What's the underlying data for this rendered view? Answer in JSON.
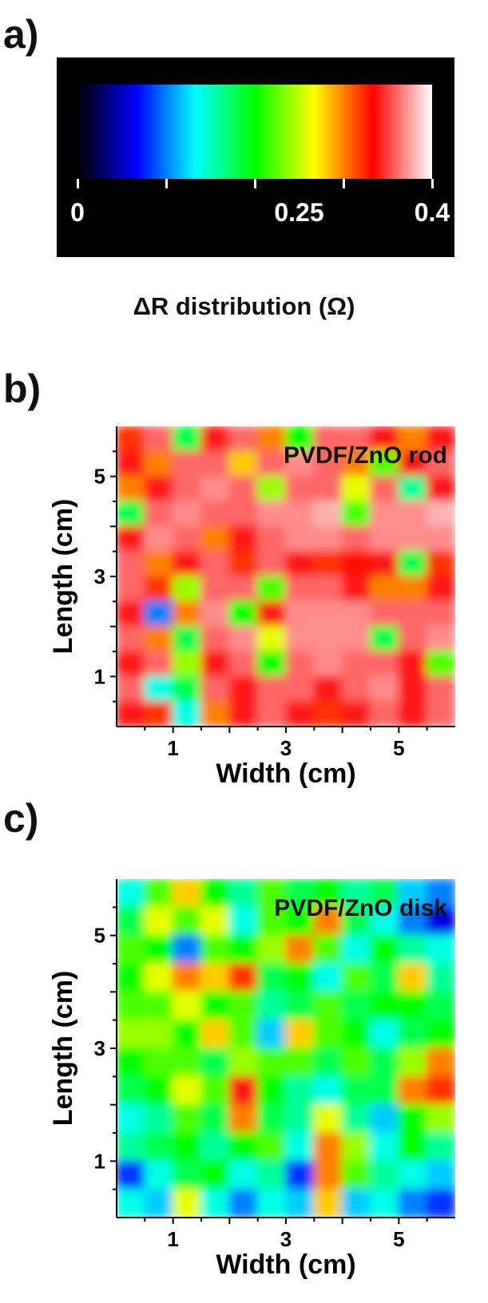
{
  "panels": {
    "a": "a)",
    "b": "b)",
    "c": "c)"
  },
  "colorbar": {
    "title": "ΔR distribution (Ω)",
    "range": [
      0,
      0.4
    ],
    "tick_labels": [
      {
        "value": 0,
        "label": "0"
      },
      {
        "value": 0.25,
        "label": "0.25"
      },
      {
        "value": 0.4,
        "label": "0.4"
      }
    ],
    "minor_ticks": [
      0,
      0.1,
      0.2,
      0.3,
      0.4
    ],
    "colors": [
      "#000000",
      "#0000ff",
      "#00ffff",
      "#00ff00",
      "#ffff00",
      "#ff0000",
      "#ffffff"
    ]
  },
  "chart_data": [
    {
      "type": "heatmap",
      "title": "PVDF/ZnO rod",
      "xlabel": "Width (cm)",
      "ylabel": "Length (cm)",
      "xlim": [
        0,
        6
      ],
      "ylim": [
        0,
        6
      ],
      "xticks": [
        1,
        3,
        5
      ],
      "yticks": [
        1,
        3,
        5
      ],
      "value_range": [
        0,
        0.4
      ],
      "x": [
        0.25,
        0.75,
        1.25,
        1.75,
        2.25,
        2.75,
        3.25,
        3.75,
        4.25,
        4.75,
        5.25,
        5.75
      ],
      "y": [
        5.75,
        5.25,
        4.75,
        4.25,
        3.75,
        3.25,
        2.75,
        2.25,
        1.75,
        1.25,
        0.75,
        0.25
      ],
      "z": [
        [
          0.32,
          0.36,
          0.18,
          0.34,
          0.36,
          0.3,
          0.2,
          0.36,
          0.36,
          0.34,
          0.3,
          0.34
        ],
        [
          0.34,
          0.3,
          0.36,
          0.36,
          0.28,
          0.36,
          0.37,
          0.36,
          0.3,
          0.22,
          0.34,
          0.36
        ],
        [
          0.3,
          0.34,
          0.36,
          0.37,
          0.36,
          0.24,
          0.36,
          0.36,
          0.26,
          0.36,
          0.16,
          0.34
        ],
        [
          0.18,
          0.36,
          0.37,
          0.36,
          0.36,
          0.37,
          0.37,
          0.38,
          0.22,
          0.37,
          0.37,
          0.38
        ],
        [
          0.34,
          0.37,
          0.36,
          0.3,
          0.34,
          0.36,
          0.37,
          0.37,
          0.36,
          0.37,
          0.37,
          0.37
        ],
        [
          0.36,
          0.3,
          0.34,
          0.36,
          0.32,
          0.36,
          0.34,
          0.32,
          0.33,
          0.34,
          0.18,
          0.32
        ],
        [
          0.36,
          0.32,
          0.24,
          0.36,
          0.36,
          0.22,
          0.36,
          0.36,
          0.34,
          0.3,
          0.3,
          0.34
        ],
        [
          0.34,
          0.1,
          0.3,
          0.37,
          0.2,
          0.34,
          0.37,
          0.37,
          0.37,
          0.36,
          0.36,
          0.36
        ],
        [
          0.36,
          0.3,
          0.18,
          0.36,
          0.37,
          0.26,
          0.37,
          0.37,
          0.37,
          0.18,
          0.36,
          0.37
        ],
        [
          0.34,
          0.36,
          0.24,
          0.34,
          0.36,
          0.2,
          0.36,
          0.37,
          0.36,
          0.36,
          0.34,
          0.22
        ],
        [
          0.36,
          0.14,
          0.18,
          0.36,
          0.34,
          0.36,
          0.36,
          0.34,
          0.36,
          0.37,
          0.34,
          0.36
        ],
        [
          0.34,
          0.32,
          0.14,
          0.3,
          0.34,
          0.36,
          0.34,
          0.32,
          0.34,
          0.36,
          0.34,
          0.36
        ]
      ]
    },
    {
      "type": "heatmap",
      "title": "PVDF/ZnO disk",
      "xlabel": "Width (cm)",
      "ylabel": "Length (cm)",
      "xlim": [
        0,
        6
      ],
      "ylim": [
        0,
        6
      ],
      "xticks": [
        1,
        3,
        5
      ],
      "yticks": [
        1,
        3,
        5
      ],
      "value_range": [
        0,
        0.4
      ],
      "x": [
        0.25,
        0.75,
        1.25,
        1.75,
        2.25,
        2.75,
        3.25,
        3.75,
        4.25,
        4.75,
        5.25,
        5.75
      ],
      "y": [
        5.75,
        5.25,
        4.75,
        4.25,
        3.75,
        3.25,
        2.75,
        2.25,
        1.75,
        1.25,
        0.75,
        0.25
      ],
      "z": [
        [
          0.14,
          0.22,
          0.28,
          0.2,
          0.16,
          0.22,
          0.18,
          0.2,
          0.16,
          0.18,
          0.12,
          0.1
        ],
        [
          0.18,
          0.26,
          0.22,
          0.26,
          0.14,
          0.22,
          0.2,
          0.3,
          0.18,
          0.14,
          0.1,
          0.06
        ],
        [
          0.22,
          0.2,
          0.1,
          0.22,
          0.2,
          0.24,
          0.3,
          0.22,
          0.14,
          0.2,
          0.16,
          0.14
        ],
        [
          0.2,
          0.26,
          0.3,
          0.28,
          0.32,
          0.18,
          0.2,
          0.14,
          0.22,
          0.18,
          0.28,
          0.16
        ],
        [
          0.22,
          0.22,
          0.26,
          0.2,
          0.22,
          0.16,
          0.18,
          0.22,
          0.18,
          0.2,
          0.2,
          0.18
        ],
        [
          0.24,
          0.24,
          0.2,
          0.28,
          0.22,
          0.12,
          0.28,
          0.22,
          0.2,
          0.14,
          0.18,
          0.2
        ],
        [
          0.2,
          0.22,
          0.22,
          0.18,
          0.24,
          0.22,
          0.22,
          0.18,
          0.22,
          0.18,
          0.24,
          0.3
        ],
        [
          0.18,
          0.2,
          0.26,
          0.22,
          0.34,
          0.2,
          0.16,
          0.14,
          0.18,
          0.18,
          0.3,
          0.32
        ],
        [
          0.14,
          0.16,
          0.22,
          0.18,
          0.3,
          0.18,
          0.16,
          0.26,
          0.16,
          0.12,
          0.2,
          0.24
        ],
        [
          0.16,
          0.18,
          0.2,
          0.16,
          0.2,
          0.22,
          0.14,
          0.3,
          0.24,
          0.14,
          0.2,
          0.16
        ],
        [
          0.08,
          0.14,
          0.18,
          0.2,
          0.14,
          0.16,
          0.08,
          0.3,
          0.22,
          0.16,
          0.14,
          0.12
        ],
        [
          0.14,
          0.12,
          0.26,
          0.14,
          0.1,
          0.14,
          0.12,
          0.28,
          0.12,
          0.14,
          0.1,
          0.08
        ]
      ]
    }
  ]
}
